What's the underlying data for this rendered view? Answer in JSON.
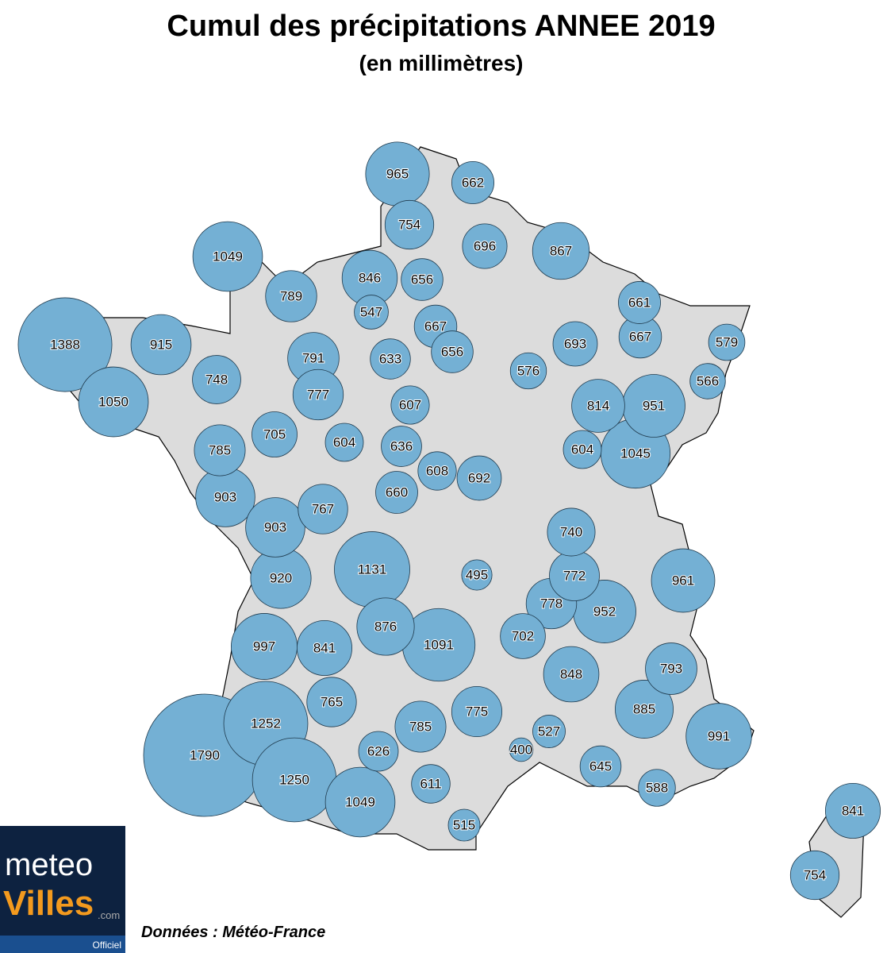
{
  "header": {
    "title": "Cumul des précipitations ANNEE 2019",
    "subtitle": "(en millimètres)"
  },
  "stations": {
    "values": [
      965,
      662,
      754,
      696,
      867,
      1049,
      846,
      656,
      789,
      661,
      547,
      667,
      667,
      579,
      1388,
      915,
      791,
      656,
      633,
      693,
      576,
      748,
      566,
      777,
      1050,
      607,
      814,
      951,
      705,
      604,
      636,
      785,
      604,
      1045,
      608,
      692,
      660,
      903,
      767,
      903,
      740,
      1131,
      495,
      772,
      920,
      961,
      778,
      952,
      876,
      997,
      841,
      1091,
      702,
      793,
      848,
      765,
      885,
      775,
      1252,
      785,
      527,
      991,
      626,
      400,
      1790,
      645,
      1250,
      611,
      588,
      1049,
      515,
      841,
      754
    ]
  },
  "source": "Données : Météo-France",
  "logo": {
    "line1": "meteo",
    "line2": "Villes",
    "suffix": ".com",
    "tag": "Officiel"
  }
}
